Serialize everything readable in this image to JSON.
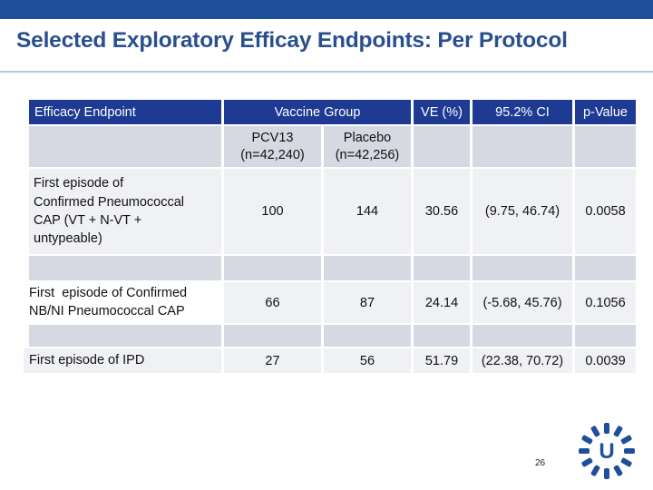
{
  "header_bar_color": "#1f4e9a",
  "title": "Selected Exploratory Efficay Endpoints: Per Protocol",
  "table": {
    "columns": {
      "endpoint": "Efficacy Endpoint",
      "group": "Vaccine Group",
      "ve": "VE (%)",
      "ci": "95.2% CI",
      "p": "p-Value"
    },
    "subheaders": {
      "pcv13": "PCV13",
      "pcv13_n": "(n=42,240)",
      "placebo": "Placebo",
      "placebo_n": "(n=42,256)"
    },
    "rows": [
      {
        "endpoint_lines": [
          "First episode of",
          "Confirmed Pneumococcal",
          "CAP (VT + N-VT +",
          "untypeable)"
        ],
        "pcv13": "100",
        "placebo": "144",
        "ve": "30.56",
        "ci": "(9.75, 46.74)",
        "p": "0.0058"
      },
      {
        "endpoint_lines": [
          "First  episode of Confirmed",
          "NB/NI Pneumococcal CAP"
        ],
        "pcv13": "66",
        "placebo": "87",
        "ve": "24.14",
        "ci": "(-5.68, 45.76)",
        "p": "0.1056"
      },
      {
        "endpoint_lines": [
          "First episode of IPD"
        ],
        "pcv13": "27",
        "placebo": "56",
        "ve": "51.79",
        "ci": "(22.38, 70.72)",
        "p": "0.0039"
      }
    ]
  },
  "page_number": "26",
  "logo_letter": "U"
}
